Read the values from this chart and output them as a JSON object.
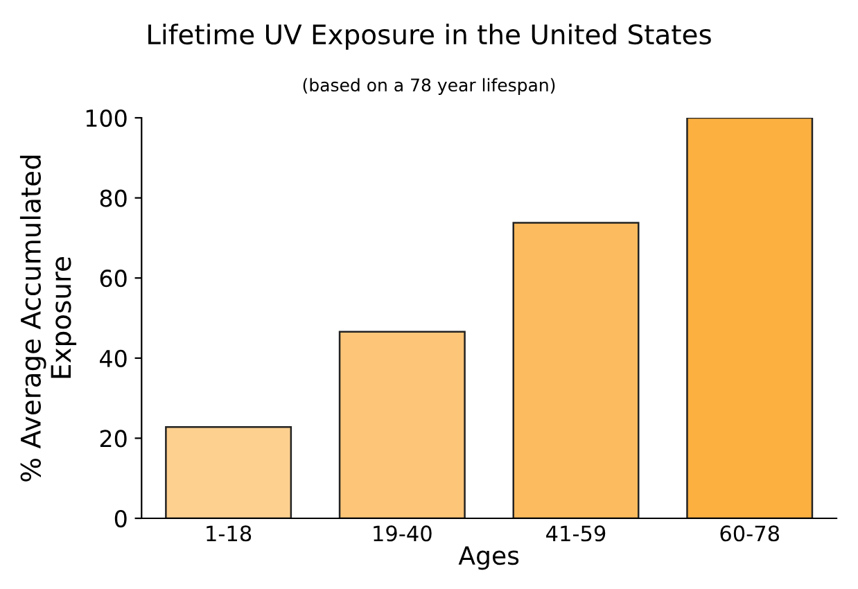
{
  "chart_data": {
    "type": "bar",
    "title": "Lifetime UV Exposure in the United States",
    "subtitle": "(based on a 78 year lifespan)",
    "xlabel": "Ages",
    "ylabel": "% Average Accumulated\nExposure",
    "categories": [
      "1-18",
      "19-40",
      "41-59",
      "60-78"
    ],
    "values": [
      22.8,
      46.6,
      73.8,
      100
    ],
    "colors": [
      "#fdd08f",
      "#fdc577",
      "#fcbb5e",
      "#fbb040"
    ],
    "ylim": [
      0,
      100
    ],
    "yticks": [
      0,
      20,
      40,
      60,
      80,
      100
    ],
    "grid": false
  }
}
